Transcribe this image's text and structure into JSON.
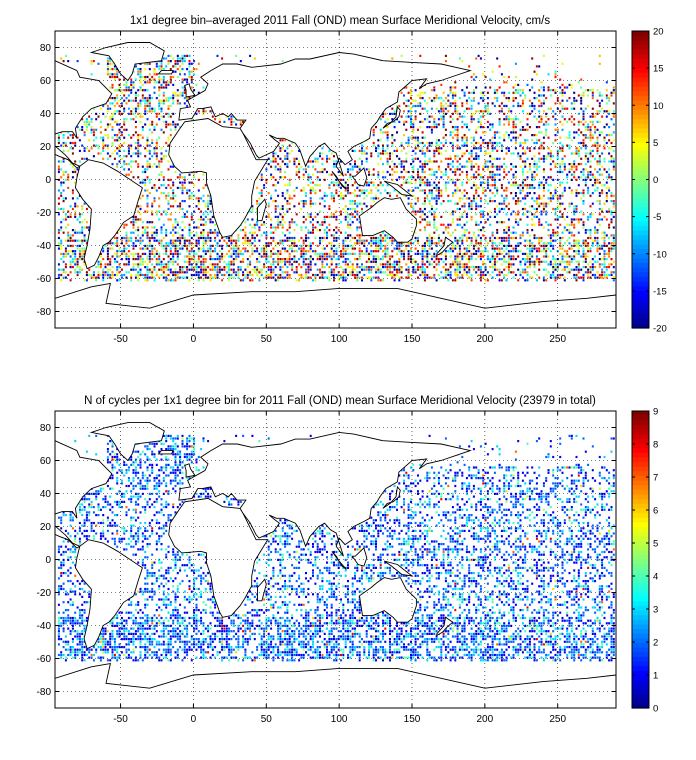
{
  "chart_data": [
    {
      "type": "heatmap",
      "title": "1x1 degree bin–averaged 2011 Fall (OND) mean Surface Meridional Velocity, cm/s",
      "x_ticks": [
        -50,
        0,
        50,
        100,
        150,
        200,
        250
      ],
      "y_ticks": [
        80,
        60,
        40,
        20,
        0,
        -20,
        -40,
        -60,
        -80
      ],
      "xlim": [
        -95,
        290
      ],
      "ylim": [
        -90,
        90
      ],
      "grid": true,
      "colorbar": {
        "colormap": "jet",
        "range": [
          -20,
          20
        ],
        "ticks": [
          20,
          15,
          10,
          5,
          0,
          -5,
          -10,
          -15,
          -20
        ]
      },
      "value_note": "scattered 1x1 degree ocean bins, values between -20 and 20"
    },
    {
      "type": "heatmap",
      "title": "N of cycles per 1x1 degree bin for 2011 Fall (OND) mean Surface Meridional Velocity (23979 in total)",
      "x_ticks": [
        -50,
        0,
        50,
        100,
        150,
        200,
        250
      ],
      "y_ticks": [
        80,
        60,
        40,
        20,
        0,
        -20,
        -40,
        -60,
        -80
      ],
      "xlim": [
        -95,
        290
      ],
      "ylim": [
        -90,
        90
      ],
      "grid": true,
      "colorbar": {
        "colormap": "jet",
        "range": [
          0,
          9
        ],
        "ticks": [
          9,
          8,
          7,
          6,
          5,
          4,
          3,
          2,
          1,
          0
        ]
      },
      "total_cycles": 23979,
      "value_note": "scattered 1x1 degree ocean bins, counts mostly 1-3"
    }
  ],
  "colors": {
    "background": "#ffffff",
    "axes": "#000000",
    "grid": "#000000",
    "coastline": "#000000"
  }
}
